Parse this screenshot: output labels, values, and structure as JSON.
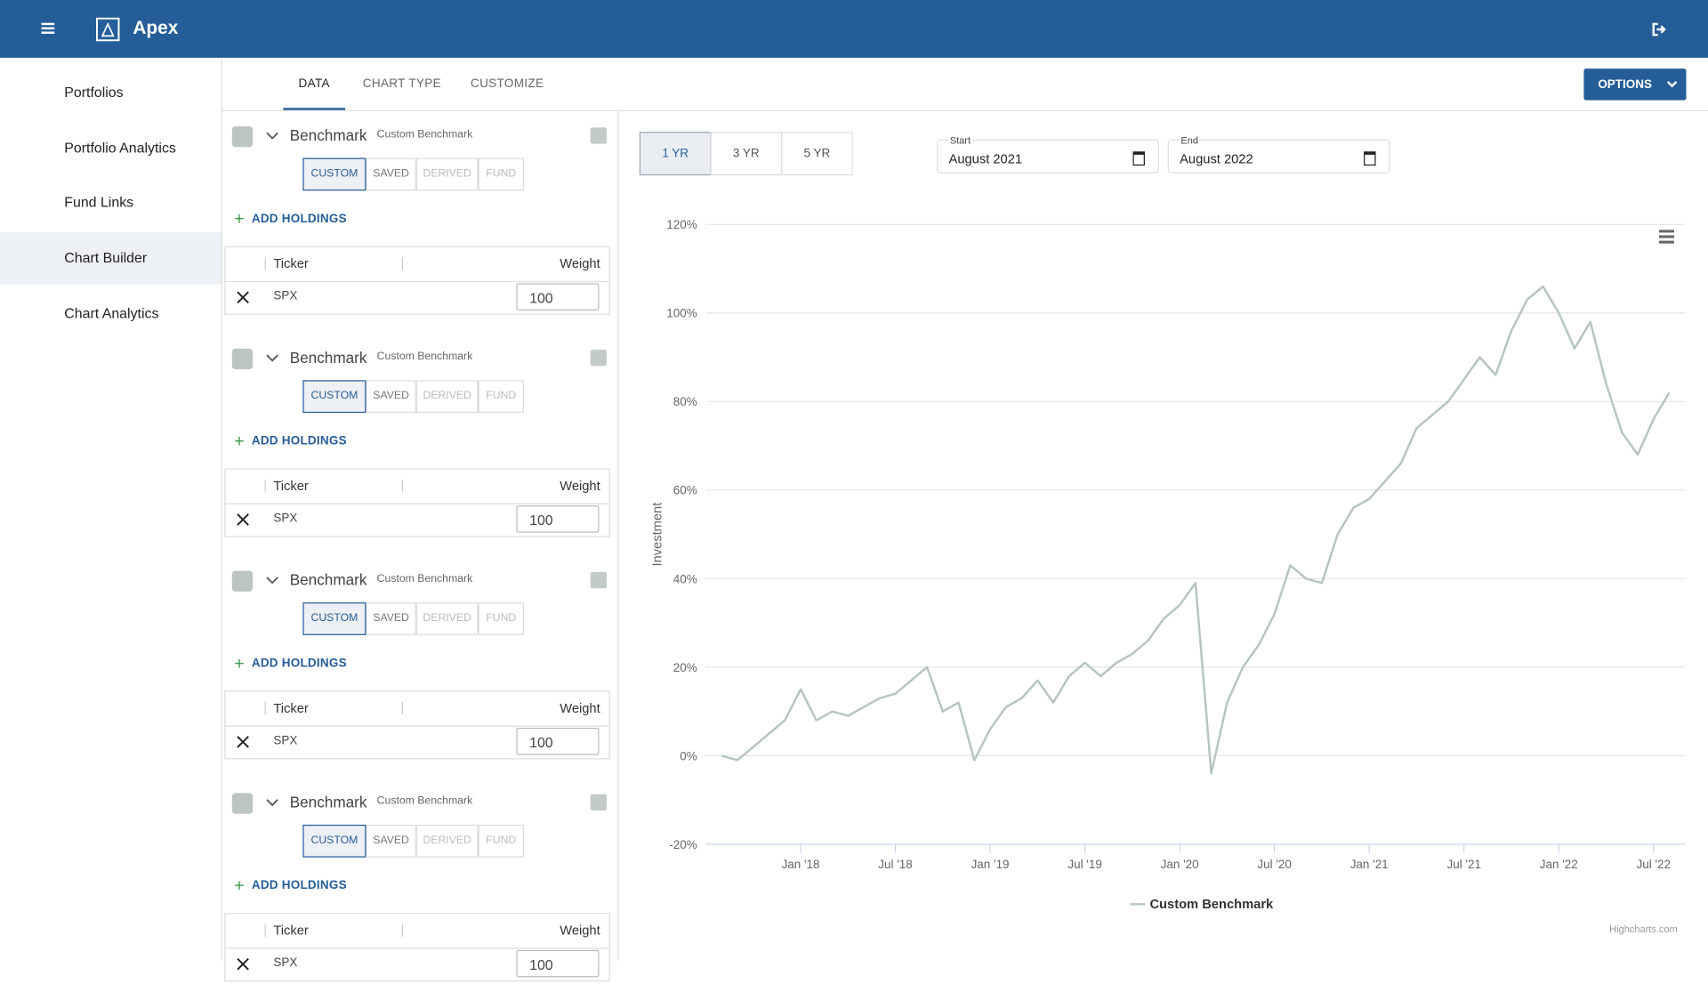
{
  "header": {
    "app_name": "Apex"
  },
  "sidebar": {
    "items": [
      "Portfolios",
      "Portfolio Analytics",
      "Fund Links",
      "Chart Builder",
      "Chart Analytics"
    ],
    "active": 3
  },
  "tabs": {
    "items": [
      "DATA",
      "CHART TYPE",
      "CUSTOMIZE"
    ],
    "active": 0
  },
  "options_button": "OPTIONS",
  "benchmarks": [
    {
      "title": "Benchmark",
      "subtitle": "Custom Benchmark",
      "sources": [
        "CUSTOM",
        "SAVED",
        "DERIVED",
        "FUND"
      ],
      "active_source": 0,
      "add_label": "ADD HOLDINGS",
      "columns": [
        "Ticker",
        "Weight"
      ],
      "rows": [
        {
          "ticker": "SPX",
          "weight": 100
        }
      ]
    },
    {
      "title": "Benchmark",
      "subtitle": "Custom Benchmark",
      "sources": [
        "CUSTOM",
        "SAVED",
        "DERIVED",
        "FUND"
      ],
      "active_source": 0,
      "add_label": "ADD HOLDINGS",
      "columns": [
        "Ticker",
        "Weight"
      ],
      "rows": [
        {
          "ticker": "SPX",
          "weight": 100
        }
      ]
    },
    {
      "title": "Benchmark",
      "subtitle": "Custom Benchmark",
      "sources": [
        "CUSTOM",
        "SAVED",
        "DERIVED",
        "FUND"
      ],
      "active_source": 0,
      "add_label": "ADD HOLDINGS",
      "columns": [
        "Ticker",
        "Weight"
      ],
      "rows": [
        {
          "ticker": "SPX",
          "weight": 100
        }
      ]
    },
    {
      "title": "Benchmark",
      "subtitle": "Custom Benchmark",
      "sources": [
        "CUSTOM",
        "SAVED",
        "DERIVED",
        "FUND"
      ],
      "active_source": 0,
      "add_label": "ADD HOLDINGS",
      "columns": [
        "Ticker",
        "Weight"
      ],
      "rows": [
        {
          "ticker": "SPX",
          "weight": 100
        }
      ]
    }
  ],
  "range_buttons": {
    "items": [
      "1 YR",
      "3 YR",
      "5 YR"
    ],
    "active": 0
  },
  "date_fields": [
    {
      "label": "Start",
      "value": "August 2021"
    },
    {
      "label": "End",
      "value": "August 2022"
    }
  ],
  "chart_data": {
    "type": "line",
    "y_label": "Investment",
    "credits": "Highcharts.com",
    "x": [
      "2017-08",
      "2017-09",
      "2017-10",
      "2017-11",
      "2017-12",
      "2018-01",
      "2018-02",
      "2018-03",
      "2018-04",
      "2018-05",
      "2018-06",
      "2018-07",
      "2018-08",
      "2018-09",
      "2018-10",
      "2018-11",
      "2018-12",
      "2019-01",
      "2019-02",
      "2019-03",
      "2019-04",
      "2019-05",
      "2019-06",
      "2019-07",
      "2019-08",
      "2019-09",
      "2019-10",
      "2019-11",
      "2019-12",
      "2020-01",
      "2020-02",
      "2020-03",
      "2020-04",
      "2020-05",
      "2020-06",
      "2020-07",
      "2020-08",
      "2020-09",
      "2020-10",
      "2020-11",
      "2020-12",
      "2021-01",
      "2021-02",
      "2021-03",
      "2021-04",
      "2021-05",
      "2021-06",
      "2021-07",
      "2021-08",
      "2021-09",
      "2021-10",
      "2021-11",
      "2021-12",
      "2022-01",
      "2022-02",
      "2022-03",
      "2022-04",
      "2022-05",
      "2022-06",
      "2022-07",
      "2022-08"
    ],
    "series": [
      {
        "name": "Custom Benchmark",
        "color": "#b5c4bf",
        "values": [
          0,
          -1,
          2,
          5,
          8,
          15,
          8,
          10,
          9,
          11,
          13,
          14,
          17,
          20,
          10,
          12,
          -1,
          6,
          11,
          13,
          17,
          12,
          18,
          21,
          18,
          21,
          23,
          26,
          31,
          34,
          39,
          -4,
          12,
          20,
          25,
          32,
          43,
          40,
          39,
          50,
          56,
          58,
          62,
          66,
          74,
          77,
          80,
          85,
          90,
          86,
          96,
          103,
          106,
          100,
          92,
          98,
          84,
          73,
          68,
          76,
          82
        ]
      }
    ],
    "xlim": [
      "2017-07",
      "2022-09"
    ],
    "xticks": [
      {
        "value": "2018-01",
        "label": "Jan '18"
      },
      {
        "value": "2018-07",
        "label": "Jul '18"
      },
      {
        "value": "2019-01",
        "label": "Jan '19"
      },
      {
        "value": "2019-07",
        "label": "Jul '19"
      },
      {
        "value": "2020-01",
        "label": "Jan '20"
      },
      {
        "value": "2020-07",
        "label": "Jul '20"
      },
      {
        "value": "2021-01",
        "label": "Jan '21"
      },
      {
        "value": "2021-07",
        "label": "Jul '21"
      },
      {
        "value": "2022-01",
        "label": "Jan '22"
      },
      {
        "value": "2022-07",
        "label": "Jul '22"
      }
    ],
    "ylim": [
      -20,
      120
    ],
    "yticks": [
      {
        "value": -20,
        "label": "-20%"
      },
      {
        "value": 0,
        "label": "0%"
      },
      {
        "value": 20,
        "label": "20%"
      },
      {
        "value": 40,
        "label": "40%"
      },
      {
        "value": 60,
        "label": "60%"
      },
      {
        "value": 80,
        "label": "80%"
      },
      {
        "value": 100,
        "label": "100%"
      },
      {
        "value": 120,
        "label": "120%"
      }
    ],
    "grid": true,
    "legend": "bottom"
  }
}
